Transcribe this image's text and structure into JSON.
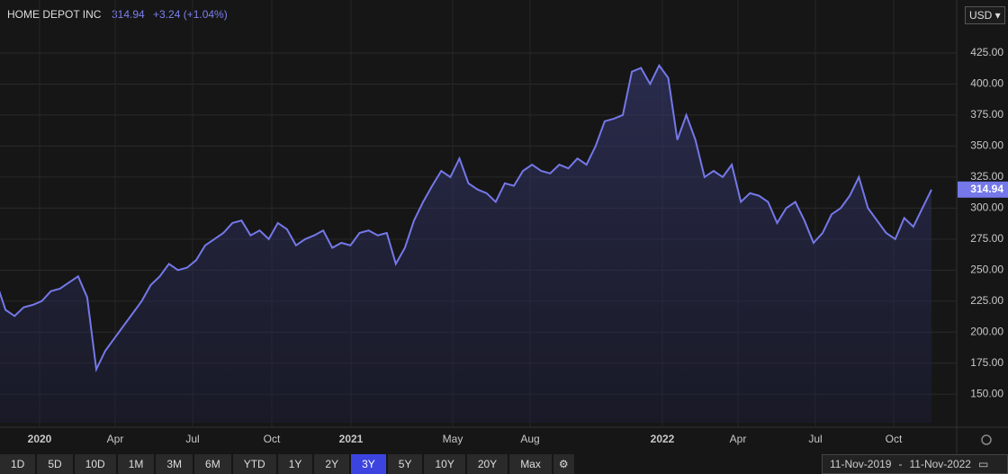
{
  "header": {
    "name": "HOME DEPOT INC",
    "last": "314.94",
    "change": "+3.24 (+1.04%)"
  },
  "currency": "USD",
  "chart_data": {
    "type": "line",
    "series": [
      {
        "name": "HOME DEPOT INC",
        "color": "#7478e8",
        "values": [
          240,
          218,
          213,
          220,
          222,
          225,
          233,
          235,
          240,
          245,
          228,
          170,
          185,
          195,
          205,
          215,
          225,
          238,
          245,
          255,
          250,
          252,
          258,
          270,
          275,
          280,
          288,
          290,
          278,
          282,
          275,
          288,
          283,
          270,
          275,
          278,
          282,
          268,
          272,
          270,
          280,
          282,
          278,
          280,
          255,
          268,
          290,
          305,
          318,
          330,
          325,
          340,
          320,
          315,
          312,
          305,
          320,
          318,
          330,
          335,
          330,
          328,
          335,
          332,
          340,
          335,
          350,
          370,
          372,
          375,
          410,
          413,
          400,
          415,
          405,
          355,
          375,
          355,
          325,
          330,
          325,
          335,
          305,
          312,
          310,
          305,
          288,
          300,
          305,
          290,
          272,
          280,
          295,
          300,
          310,
          325,
          300,
          290,
          280,
          275,
          292,
          285,
          300,
          314.94
        ]
      }
    ],
    "ylim": [
      127,
      446
    ],
    "yticks": [
      {
        "value": 150,
        "label": "150.00"
      },
      {
        "value": 175,
        "label": "175.00"
      },
      {
        "value": 200,
        "label": "200.00"
      },
      {
        "value": 225,
        "label": "225.00"
      },
      {
        "value": 250,
        "label": "250.00"
      },
      {
        "value": 275,
        "label": "275.00"
      },
      {
        "value": 300,
        "label": "300.00"
      },
      {
        "value": 325,
        "label": "325.00"
      },
      {
        "value": 350,
        "label": "350.00"
      },
      {
        "value": 375,
        "label": "375.00"
      },
      {
        "value": 400,
        "label": "400.00"
      },
      {
        "value": 425,
        "label": "425.00"
      }
    ],
    "x_labels": [
      "2020",
      "Apr",
      "Jul",
      "Oct",
      "2021",
      "May",
      "Aug",
      "2022",
      "Apr",
      "Jul",
      "Oct"
    ],
    "grid": true
  },
  "ranges": [
    "1D",
    "5D",
    "10D",
    "1M",
    "3M",
    "6M",
    "YTD",
    "1Y",
    "2Y",
    "3Y",
    "5Y",
    "10Y",
    "20Y",
    "Max"
  ],
  "active_range": "3Y",
  "date_range": {
    "from": "11-Nov-2019",
    "sep": "-",
    "to": "11-Nov-2022"
  }
}
